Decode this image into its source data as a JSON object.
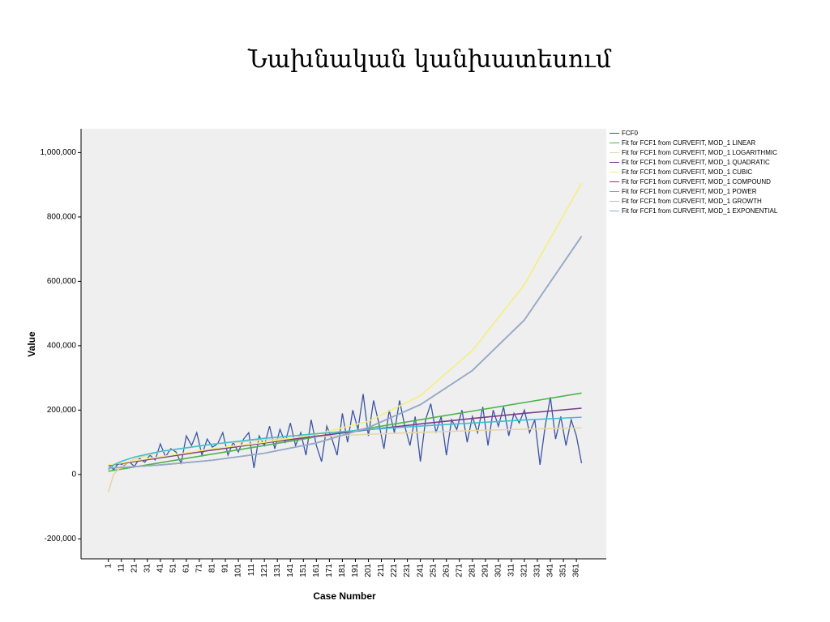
{
  "slide_title": "Նախնական կանխատեսում",
  "chart_data": {
    "type": "line",
    "x_label": "Case Number",
    "y_label": "Value",
    "xlim": [
      -20,
      384
    ],
    "xticks": [
      1,
      11,
      21,
      31,
      41,
      51,
      61,
      71,
      81,
      91,
      101,
      111,
      121,
      131,
      141,
      151,
      161,
      171,
      181,
      191,
      201,
      211,
      221,
      231,
      241,
      251,
      261,
      271,
      281,
      291,
      301,
      311,
      321,
      331,
      341,
      351,
      361
    ],
    "ylim": [
      -262000,
      1074000
    ],
    "yticks": [
      {
        "value": -200000,
        "label": "-200,000"
      },
      0,
      {
        "value": 200000,
        "label": "200,000"
      },
      {
        "value": 400000,
        "label": "400,000"
      },
      {
        "value": 600000,
        "label": "600,000"
      },
      {
        "value": 800000,
        "label": "800,000"
      },
      {
        "value": 1000000,
        "label": "1,000,000"
      }
    ],
    "series": [
      {
        "name": "FCF0",
        "color": "#3a55a4",
        "x": [
          1,
          5,
          9,
          13,
          17,
          21,
          25,
          29,
          33,
          37,
          41,
          45,
          49,
          53,
          57,
          61,
          65,
          69,
          73,
          77,
          81,
          85,
          89,
          93,
          97,
          101,
          105,
          109,
          113,
          117,
          121,
          125,
          129,
          133,
          137,
          141,
          145,
          149,
          153,
          157,
          161,
          165,
          169,
          173,
          177,
          181,
          185,
          189,
          193,
          197,
          201,
          205,
          209,
          213,
          217,
          221,
          225,
          229,
          233,
          237,
          241,
          245,
          249,
          253,
          257,
          261,
          265,
          269,
          273,
          277,
          281,
          285,
          289,
          293,
          297,
          301,
          305,
          309,
          313,
          317,
          321,
          325,
          329,
          333,
          337,
          341,
          345,
          349,
          353,
          357,
          361,
          365
        ],
        "values": [
          30000,
          15000,
          35000,
          28000,
          40000,
          25000,
          50000,
          38000,
          60000,
          45000,
          95000,
          55000,
          80000,
          70000,
          35000,
          120000,
          90000,
          130000,
          60000,
          110000,
          85000,
          95000,
          130000,
          60000,
          100000,
          70000,
          110000,
          130000,
          20000,
          120000,
          90000,
          150000,
          80000,
          140000,
          100000,
          160000,
          90000,
          130000,
          60000,
          170000,
          90000,
          40000,
          150000,
          110000,
          60000,
          190000,
          100000,
          200000,
          140000,
          250000,
          120000,
          230000,
          160000,
          80000,
          200000,
          130000,
          230000,
          150000,
          90000,
          180000,
          40000,
          170000,
          220000,
          130000,
          180000,
          60000,
          170000,
          140000,
          200000,
          100000,
          180000,
          130000,
          210000,
          90000,
          200000,
          150000,
          210000,
          120000,
          190000,
          160000,
          200000,
          130000,
          170000,
          30000,
          150000,
          240000,
          110000,
          180000,
          90000,
          170000,
          120000,
          35000
        ]
      },
      {
        "name": "Fit for FCF1 from CURVEFIT, MOD_1 LINEAR",
        "color": "#4db34d",
        "x": [
          1,
          5,
          11,
          21,
          41,
          81,
          121,
          161,
          201,
          241,
          281,
          321,
          365
        ],
        "values": [
          10000,
          12700,
          16700,
          23400,
          36700,
          63400,
          90000,
          116800,
          143500,
          170200,
          196900,
          223600,
          253000
        ]
      },
      {
        "name": "Fit for FCF1 from CURVEFIT, MOD_1 LOGARITHMIC",
        "color": "#e6d6a6",
        "x": [
          1,
          5,
          11,
          21,
          41,
          81,
          121,
          161,
          201,
          241,
          281,
          321,
          365
        ],
        "values": [
          -55000,
          -400,
          26300,
          48200,
          70900,
          94000,
          107600,
          117300,
          124800,
          131000,
          136200,
          140700,
          145000
        ]
      },
      {
        "name": "Fit for FCF1 from CURVEFIT, MOD_1 QUADRATIC",
        "color": "#7a3d8c",
        "x": [
          1,
          5,
          11,
          21,
          41,
          81,
          121,
          161,
          201,
          241,
          281,
          321,
          365
        ],
        "values": [
          28000,
          30400,
          34000,
          40000,
          52000,
          76000,
          98000,
          119000,
          139000,
          157000,
          174000,
          190000,
          206000
        ]
      },
      {
        "name": "Fit for FCF1 from CURVEFIT, MOD_1 CUBIC",
        "color": "#f4ef7c",
        "x": [
          1,
          5,
          11,
          21,
          41,
          81,
          121,
          161,
          201,
          241,
          281,
          321,
          365
        ],
        "values": [
          30000,
          32500,
          36000,
          43000,
          55000,
          80000,
          100000,
          125000,
          165000,
          245000,
          385000,
          590000,
          905000
        ]
      },
      {
        "name": "Fit for FCF1 from CURVEFIT, MOD_1 COMPOUND",
        "color": "#953a5c",
        "x": [
          1,
          5,
          11,
          21,
          41,
          81,
          121,
          161,
          201,
          241,
          281,
          321,
          365
        ],
        "values": [
          20000,
          20800,
          22000,
          24400,
          29800,
          44300,
          66000,
          98000,
          146000,
          217000,
          323000,
          480000,
          740000
        ]
      },
      {
        "name": "Fit for FCF1 from CURVEFIT, MOD_1 POWER",
        "color": "#3cc0d2",
        "x": [
          1,
          5,
          11,
          21,
          41,
          81,
          121,
          161,
          201,
          241,
          281,
          321,
          365
        ],
        "values": [
          15000,
          29300,
          41000,
          54000,
          71900,
          94000,
          112500,
          126600,
          139600,
          150400,
          160000,
          169400,
          178000
        ]
      },
      {
        "name": "Fit for FCF1 from CURVEFIT, MOD_1 GROWTH",
        "color": "#b8b8c4",
        "x": [
          1,
          5,
          11,
          21,
          41,
          81,
          121,
          161,
          201,
          241,
          281,
          321,
          365
        ],
        "values": [
          20000,
          20800,
          22000,
          24400,
          29800,
          44300,
          66000,
          98000,
          146000,
          217000,
          323000,
          480000,
          740000
        ]
      },
      {
        "name": "Fit for FCF1 from CURVEFIT, MOD_1 EXPONENTIAL",
        "color": "#92aacb",
        "x": [
          1,
          5,
          11,
          21,
          41,
          81,
          121,
          161,
          201,
          241,
          281,
          321,
          365
        ],
        "values": [
          20000,
          20800,
          22000,
          24400,
          29800,
          44300,
          66000,
          98000,
          146000,
          217000,
          323000,
          480000,
          740000
        ]
      }
    ]
  }
}
